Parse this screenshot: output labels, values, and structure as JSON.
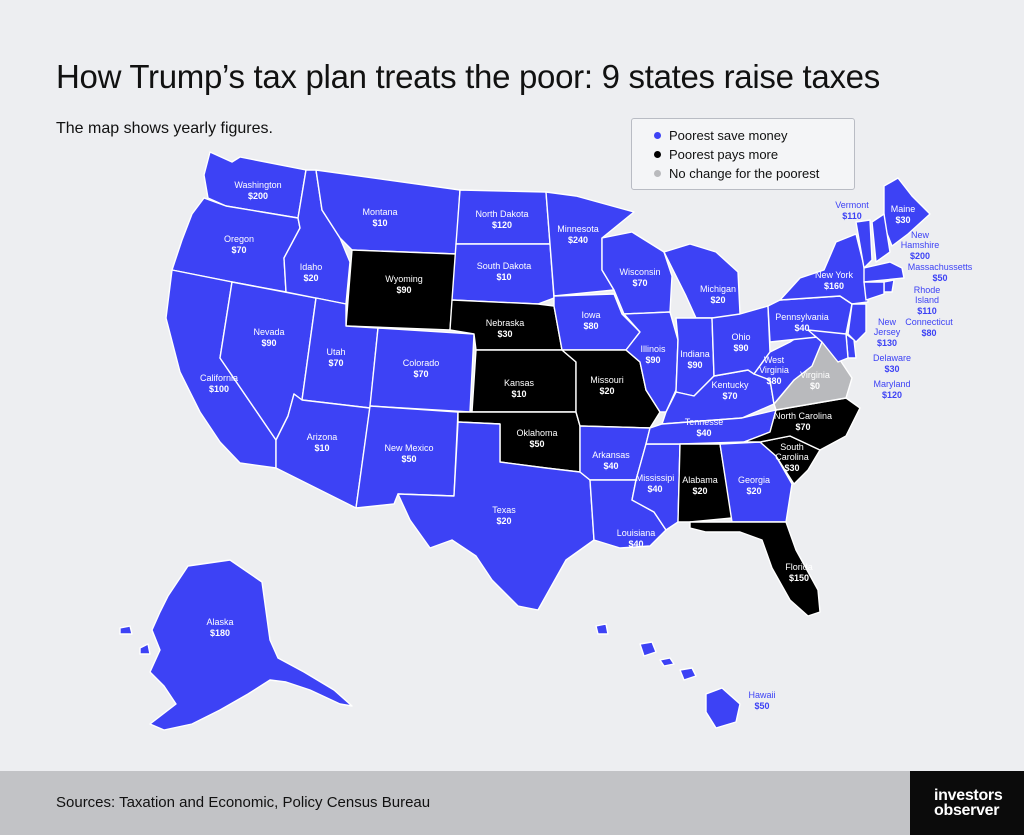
{
  "header": {
    "title": "How Trump’s tax plan treats the poor: 9 states raise taxes",
    "subtitle": "The map shows yearly figures."
  },
  "legend": {
    "items": [
      {
        "label": "Poorest save money",
        "color": "#3d42f5"
      },
      {
        "label": "Poorest pays more",
        "color": "#000000"
      },
      {
        "label": "No change for the poorest",
        "color": "#b9babd"
      }
    ]
  },
  "states": [
    {
      "name": "Washington",
      "value": "$200",
      "category": "save"
    },
    {
      "name": "Oregon",
      "value": "$70",
      "category": "save"
    },
    {
      "name": "California",
      "value": "$100",
      "category": "save"
    },
    {
      "name": "Nevada",
      "value": "$90",
      "category": "save"
    },
    {
      "name": "Idaho",
      "value": "$20",
      "category": "save"
    },
    {
      "name": "Montana",
      "value": "$10",
      "category": "save"
    },
    {
      "name": "Wyoming",
      "value": "$90",
      "category": "more"
    },
    {
      "name": "Utah",
      "value": "$70",
      "category": "save"
    },
    {
      "name": "Arizona",
      "value": "$10",
      "category": "save"
    },
    {
      "name": "Colorado",
      "value": "$70",
      "category": "save"
    },
    {
      "name": "New Mexico",
      "value": "$50",
      "category": "save"
    },
    {
      "name": "North Dakota",
      "value": "$120",
      "category": "save"
    },
    {
      "name": "South Dakota",
      "value": "$10",
      "category": "save"
    },
    {
      "name": "Nebraska",
      "value": "$30",
      "category": "more"
    },
    {
      "name": "Kansas",
      "value": "$10",
      "category": "more"
    },
    {
      "name": "Oklahoma",
      "value": "$50",
      "category": "more"
    },
    {
      "name": "Texas",
      "value": "$20",
      "category": "save"
    },
    {
      "name": "Minnesota",
      "value": "$240",
      "category": "save"
    },
    {
      "name": "Iowa",
      "value": "$80",
      "category": "save"
    },
    {
      "name": "Missouri",
      "value": "$20",
      "category": "more"
    },
    {
      "name": "Arkansas",
      "value": "$40",
      "category": "save"
    },
    {
      "name": "Louisiana",
      "value": "$40",
      "category": "save"
    },
    {
      "name": "Wisconsin",
      "value": "$70",
      "category": "save"
    },
    {
      "name": "Illinois",
      "value": "$90",
      "category": "save"
    },
    {
      "name": "Mississipi",
      "value": "$40",
      "category": "save"
    },
    {
      "name": "Michigan",
      "value": "$20",
      "category": "save"
    },
    {
      "name": "Indiana",
      "value": "$90",
      "category": "save"
    },
    {
      "name": "Kentucky",
      "value": "$70",
      "category": "save"
    },
    {
      "name": "Tennesse",
      "value": "$40",
      "category": "save"
    },
    {
      "name": "Alabama",
      "value": "$20",
      "category": "more"
    },
    {
      "name": "Ohio",
      "value": "$90",
      "category": "save"
    },
    {
      "name": "Georgia",
      "value": "$20",
      "category": "save"
    },
    {
      "name": "Florida",
      "value": "$150",
      "category": "more"
    },
    {
      "name": "South Carolina",
      "value": "$30",
      "category": "more"
    },
    {
      "name": "North Carolina",
      "value": "$70",
      "category": "more"
    },
    {
      "name": "Virginia",
      "value": "$0",
      "category": "none"
    },
    {
      "name": "West Virginia",
      "value": "$80",
      "category": "save"
    },
    {
      "name": "Pennsylvania",
      "value": "$40",
      "category": "save"
    },
    {
      "name": "New York",
      "value": "$160",
      "category": "save"
    },
    {
      "name": "Vermont",
      "value": "$110",
      "category": "save"
    },
    {
      "name": "Maine",
      "value": "$30",
      "category": "save"
    },
    {
      "name": "New Hamshire",
      "value": "$200",
      "category": "save"
    },
    {
      "name": "Massachussetts",
      "value": "$50",
      "category": "save"
    },
    {
      "name": "Rhode Island",
      "value": "$110",
      "category": "save"
    },
    {
      "name": "Connecticut",
      "value": "$80",
      "category": "save"
    },
    {
      "name": "New Jersey",
      "value": "$130",
      "category": "save"
    },
    {
      "name": "Delaware",
      "value": "$30",
      "category": "save"
    },
    {
      "name": "Maryland",
      "value": "$120",
      "category": "save"
    },
    {
      "name": "Alaska",
      "value": "$180",
      "category": "save"
    },
    {
      "name": "Hawaii",
      "value": "$50",
      "category": "save"
    }
  ],
  "footer": {
    "sources": "Sources: Taxation and Economic, Policy Census Bureau",
    "logo_line1": "investors",
    "logo_line2": "observer"
  }
}
